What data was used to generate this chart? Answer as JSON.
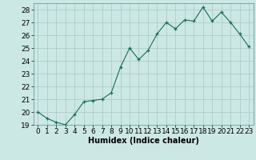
{
  "x": [
    0,
    1,
    2,
    3,
    4,
    5,
    6,
    7,
    8,
    9,
    10,
    11,
    12,
    13,
    14,
    15,
    16,
    17,
    18,
    19,
    20,
    21,
    22,
    23
  ],
  "y": [
    20.0,
    19.5,
    19.2,
    19.0,
    19.8,
    20.8,
    20.9,
    21.0,
    21.5,
    23.5,
    25.0,
    24.1,
    24.8,
    26.1,
    27.0,
    26.5,
    27.2,
    27.1,
    28.2,
    27.1,
    27.8,
    27.0,
    26.1,
    25.1
  ],
  "xlabel": "Humidex (Indice chaleur)",
  "bg_color": "#cce8e4",
  "grid_color": "#b0ccc8",
  "line_color": "#1a6b5a",
  "marker_color": "#1a6b5a",
  "ylim": [
    19,
    28.5
  ],
  "xlim": [
    -0.5,
    23.5
  ],
  "yticks": [
    19,
    20,
    21,
    22,
    23,
    24,
    25,
    26,
    27,
    28
  ],
  "xticks": [
    0,
    1,
    2,
    3,
    4,
    5,
    6,
    7,
    8,
    9,
    10,
    11,
    12,
    13,
    14,
    15,
    16,
    17,
    18,
    19,
    20,
    21,
    22,
    23
  ],
  "xlabel_fontsize": 7,
  "tick_fontsize": 6.5
}
